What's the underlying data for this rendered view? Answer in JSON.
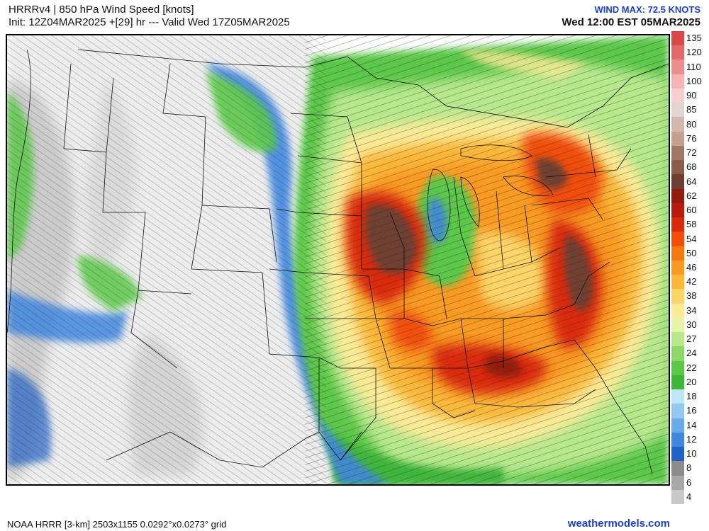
{
  "header": {
    "title": "HRRRv4 | 850 hPa Wind Speed [knots]",
    "init_line": "Init: 12Z04MAR2025 +[29] hr --- Valid Wed 17Z05MAR2025",
    "wind_max": "WIND MAX: 72.5 KNOTS",
    "valid_local": "Wed 12:00 EST 05MAR2025"
  },
  "footer": {
    "model_info": "NOAA HRRR [3-km] 2503x1155 0.0292°x0.0273° grid",
    "site": "weathermodels.com"
  },
  "legend": {
    "levels": [
      {
        "label": "135",
        "color": "#d94848"
      },
      {
        "label": "120",
        "color": "#e36a6a"
      },
      {
        "label": "110",
        "color": "#ec8e8e"
      },
      {
        "label": "100",
        "color": "#f6b4b4"
      },
      {
        "label": "90",
        "color": "#f5cfcf"
      },
      {
        "label": "85",
        "color": "#e2d6d3"
      },
      {
        "label": "80",
        "color": "#d4b7ad"
      },
      {
        "label": "76",
        "color": "#c4a091"
      },
      {
        "label": "72",
        "color": "#a27766"
      },
      {
        "label": "68",
        "color": "#8a5c4c"
      },
      {
        "label": "64",
        "color": "#6e4033"
      },
      {
        "label": "62",
        "color": "#941b0e"
      },
      {
        "label": "60",
        "color": "#b81b0c"
      },
      {
        "label": "58",
        "color": "#db2a0b"
      },
      {
        "label": "54",
        "color": "#f24e0a"
      },
      {
        "label": "50",
        "color": "#f7780e"
      },
      {
        "label": "46",
        "color": "#f99a24"
      },
      {
        "label": "42",
        "color": "#fbb83a"
      },
      {
        "label": "38",
        "color": "#fcd468"
      },
      {
        "label": "34",
        "color": "#fbea97"
      },
      {
        "label": "30",
        "color": "#e6f3a8"
      },
      {
        "label": "27",
        "color": "#b7e88c"
      },
      {
        "label": "24",
        "color": "#8cd868"
      },
      {
        "label": "22",
        "color": "#5cc84a"
      },
      {
        "label": "20",
        "color": "#3fb53a"
      },
      {
        "label": "18",
        "color": "#bfe6f7"
      },
      {
        "label": "16",
        "color": "#93c8f0"
      },
      {
        "label": "14",
        "color": "#6aaae8"
      },
      {
        "label": "12",
        "color": "#3f86de"
      },
      {
        "label": "10",
        "color": "#2162c6"
      },
      {
        "label": "8",
        "color": "#8c8c8c"
      },
      {
        "label": "6",
        "color": "#a8a8a8"
      },
      {
        "label": "4",
        "color": "#c8c8c8"
      }
    ]
  }
}
